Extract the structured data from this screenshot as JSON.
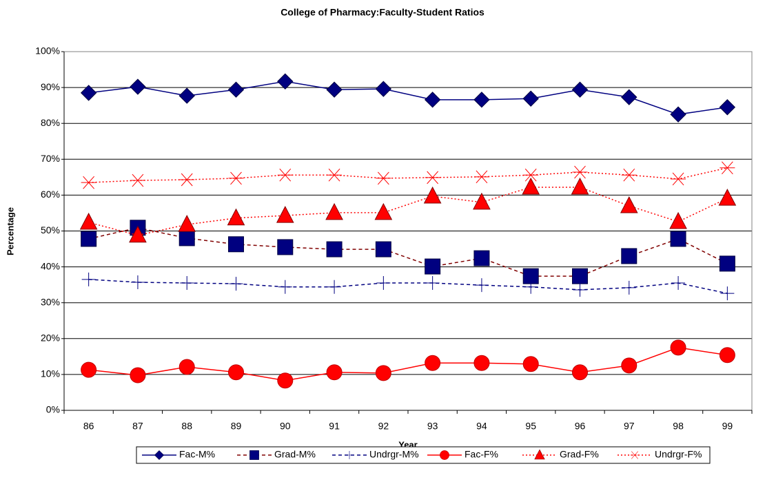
{
  "chart_data": {
    "type": "line",
    "title": "College of Pharmacy:Faculty-Student Ratios",
    "x_label": "Year",
    "y_label": "Percentage",
    "categories": [
      "86",
      "87",
      "88",
      "89",
      "90",
      "91",
      "92",
      "93",
      "94",
      "95",
      "96",
      "97",
      "98",
      "99"
    ],
    "ylim": [
      0,
      100
    ],
    "yticks": [
      {
        "value": 0,
        "label": "0%"
      },
      {
        "value": 10,
        "label": "10%"
      },
      {
        "value": 20,
        "label": "20%"
      },
      {
        "value": 30,
        "label": "30%"
      },
      {
        "value": 40,
        "label": "40%"
      },
      {
        "value": 50,
        "label": "50%"
      },
      {
        "value": 60,
        "label": "60%"
      },
      {
        "value": 70,
        "label": "70%"
      },
      {
        "value": 80,
        "label": "80%"
      },
      {
        "value": 90,
        "label": "90%"
      },
      {
        "value": 100,
        "label": "100%"
      }
    ],
    "grid": true,
    "legend": "bottom",
    "series": [
      {
        "name": "Fac-M%",
        "color": "#000080",
        "line_color": "#000080",
        "marker": "diamond",
        "dash": "solid",
        "values": [
          88.5,
          90.2,
          87.7,
          89.4,
          91.7,
          89.4,
          89.6,
          86.6,
          86.6,
          86.9,
          89.4,
          87.3,
          82.5,
          84.5
        ]
      },
      {
        "name": "Grad-M%",
        "color": "#000080",
        "line_color": "#800000",
        "marker": "square",
        "dash": "dashed",
        "values": [
          47.8,
          50.9,
          48.0,
          46.3,
          45.5,
          44.9,
          44.9,
          40.1,
          42.4,
          37.4,
          37.4,
          43.0,
          47.8,
          40.9
        ]
      },
      {
        "name": "Undrgr-M%",
        "color": "#000080",
        "line_color": "#000080",
        "marker": "plus",
        "dash": "dashed",
        "values": [
          36.5,
          35.7,
          35.5,
          35.3,
          34.4,
          34.4,
          35.5,
          35.5,
          34.9,
          34.4,
          33.6,
          34.2,
          35.5,
          32.6
        ]
      },
      {
        "name": "Fac-F%",
        "color": "#ff0000",
        "line_color": "#ff0000",
        "marker": "circle",
        "dash": "solid",
        "values": [
          11.3,
          9.8,
          12.1,
          10.6,
          8.3,
          10.6,
          10.4,
          13.2,
          13.2,
          12.9,
          10.6,
          12.5,
          17.5,
          15.4
        ]
      },
      {
        "name": "Grad-F%",
        "color": "#ff0000",
        "line_color": "#ff0000",
        "marker": "triangle",
        "dash": "dotted",
        "values": [
          52.4,
          48.8,
          51.8,
          53.6,
          54.3,
          55.1,
          55.1,
          59.7,
          58.0,
          62.2,
          62.2,
          57.0,
          52.6,
          59.1
        ]
      },
      {
        "name": "Undrgr-F%",
        "color": "#ff0000",
        "line_color": "#ff0000",
        "marker": "asterisk",
        "dash": "dotted",
        "values": [
          63.5,
          64.1,
          64.3,
          64.7,
          65.6,
          65.6,
          64.7,
          64.9,
          65.1,
          65.6,
          66.4,
          65.6,
          64.5,
          67.6
        ]
      }
    ]
  }
}
